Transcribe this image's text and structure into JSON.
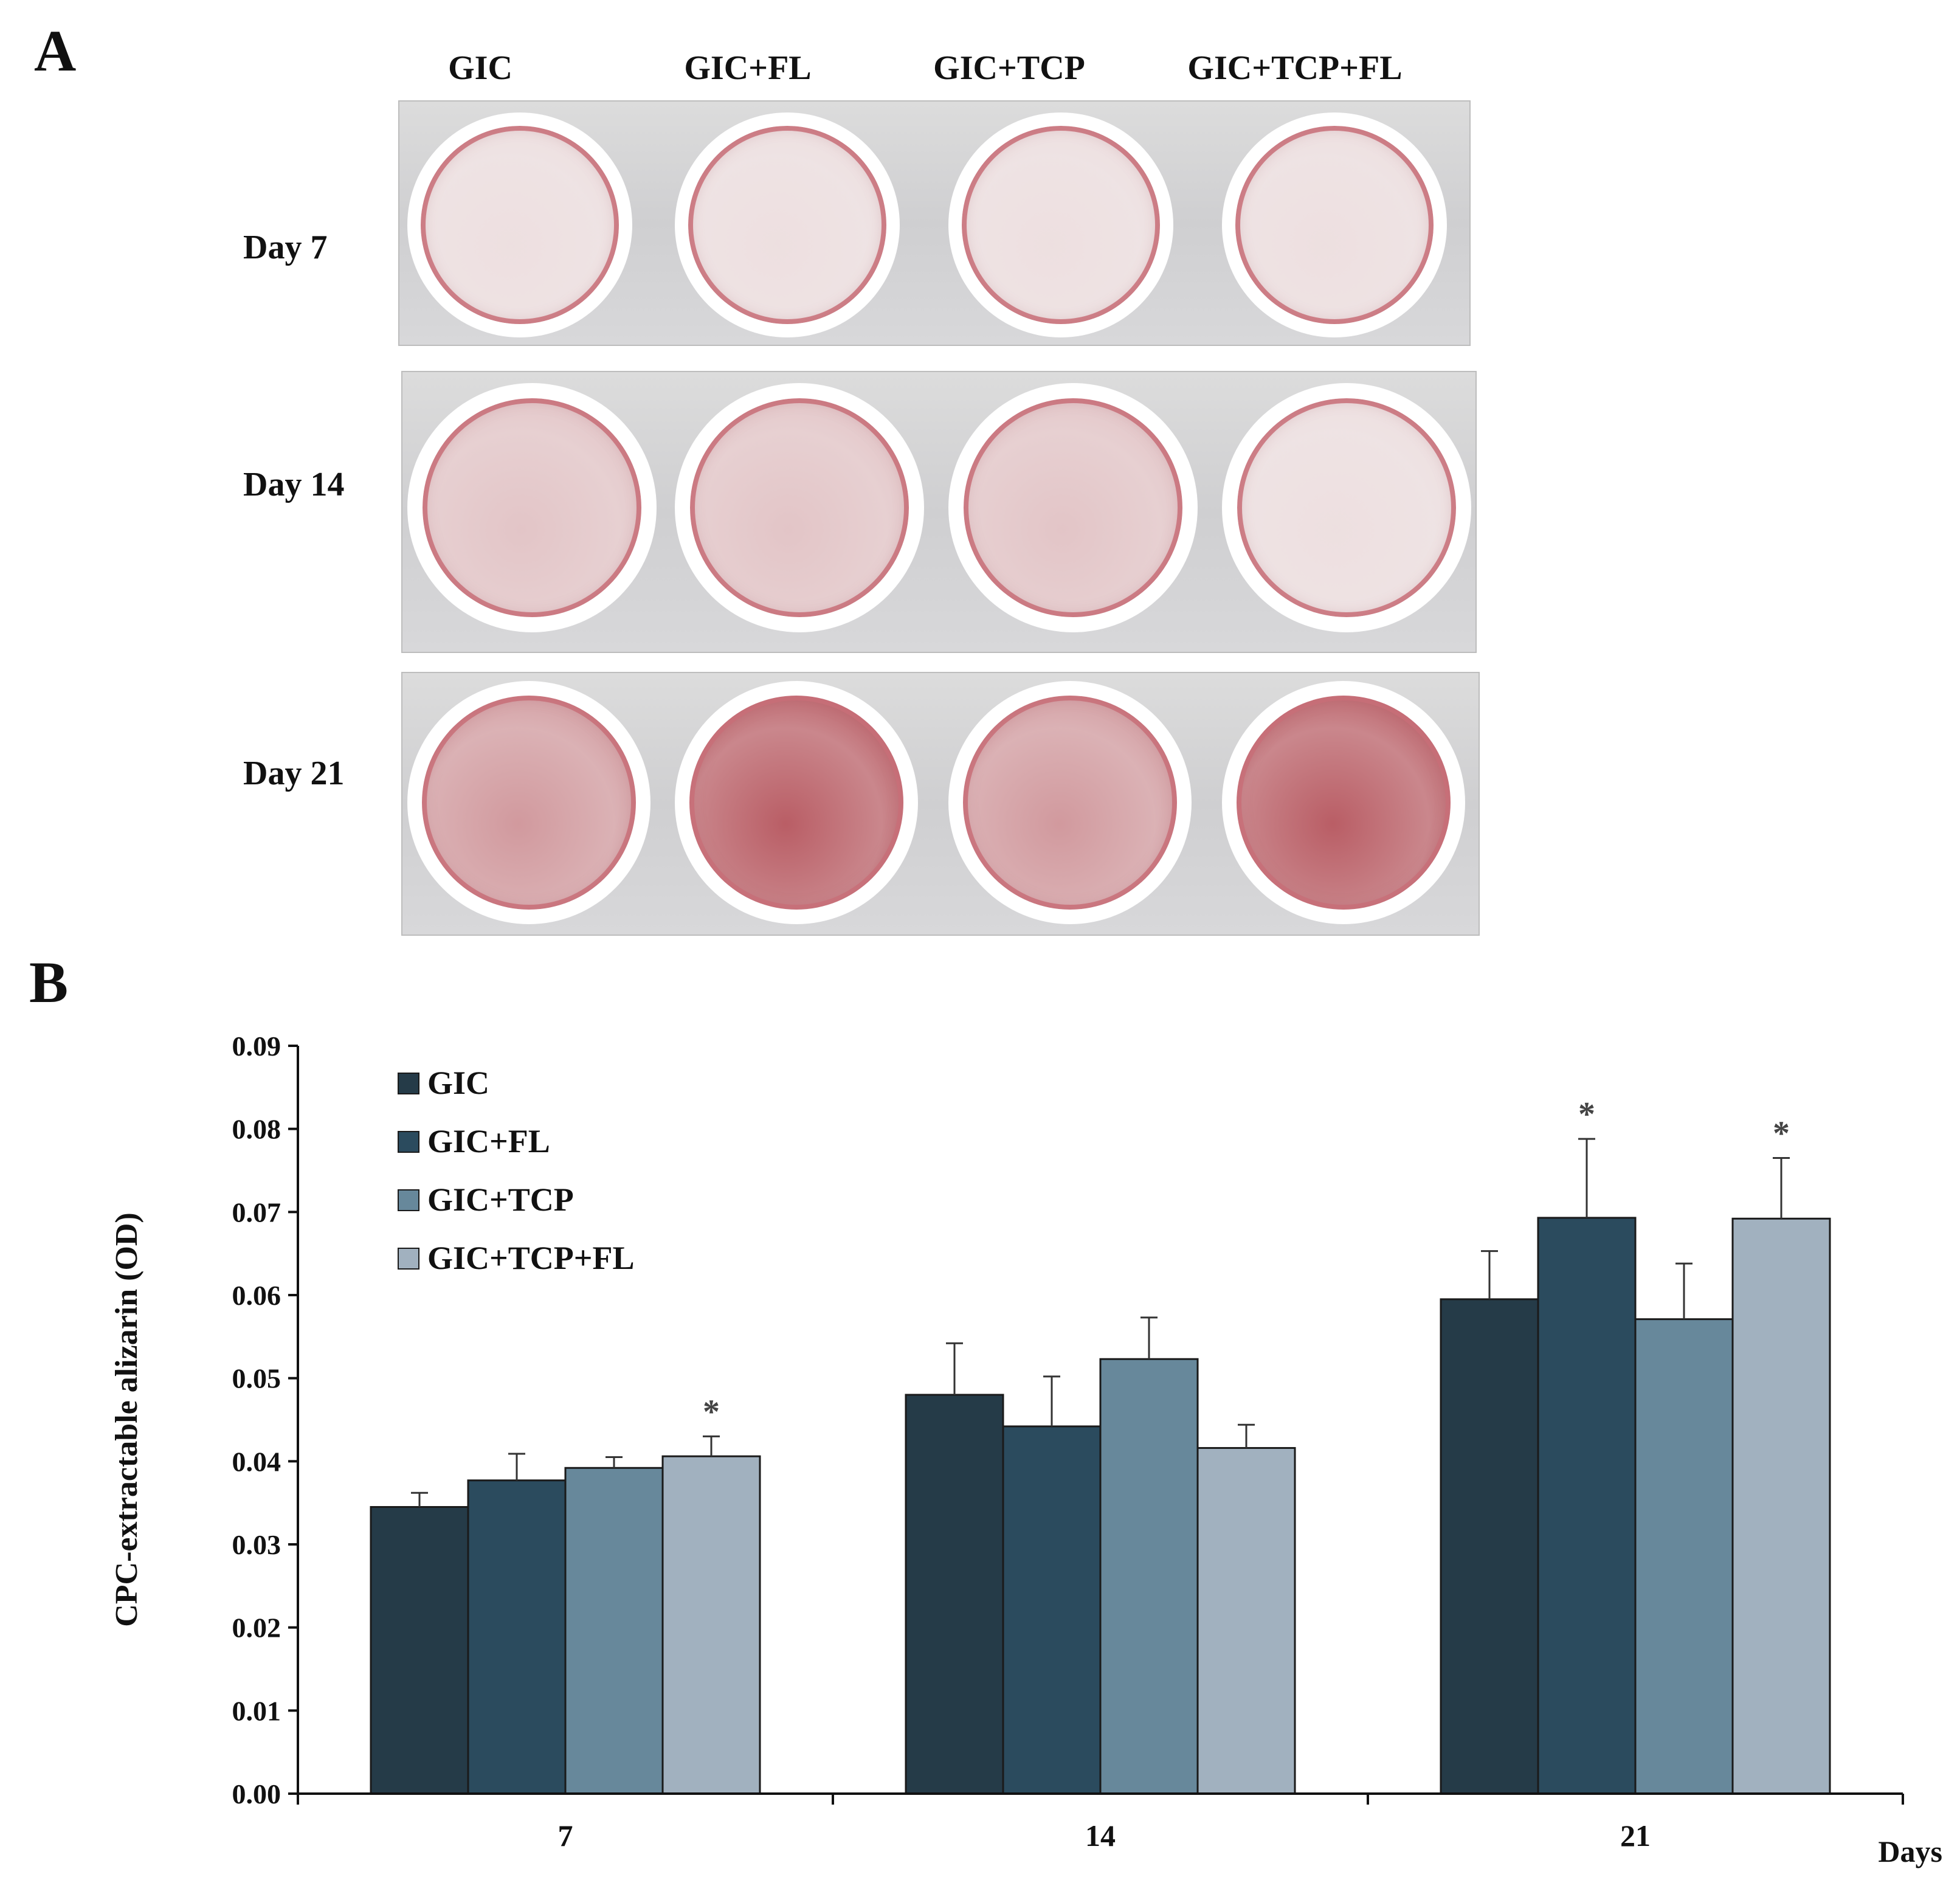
{
  "panel_a": {
    "label": "A",
    "columns": [
      "GIC",
      "GIC+FL",
      "GIC+TCP",
      "GIC+TCP+FL"
    ],
    "rows": [
      {
        "label": "Day 7",
        "stain": [
          "faint",
          "faint",
          "faint",
          "faint"
        ]
      },
      {
        "label": "Day 14",
        "stain": [
          "light",
          "light",
          "light",
          "faint"
        ]
      },
      {
        "label": "Day 21",
        "stain": [
          "moderate",
          "heavy",
          "moderate",
          "heavy"
        ]
      }
    ],
    "colors": {
      "stain": "#a8323c",
      "plate": "#d2d2d4"
    }
  },
  "panel_b": {
    "label": "B"
  },
  "chart_data": {
    "type": "bar",
    "title": "",
    "xlabel": "Days",
    "ylabel": "CPC-extractable alizarin (OD)",
    "ylim": [
      0,
      0.09
    ],
    "yticks": [
      "0.00",
      "0.01",
      "0.02",
      "0.03",
      "0.04",
      "0.05",
      "0.06",
      "0.07",
      "0.08",
      "0.09"
    ],
    "categories": [
      "7",
      "14",
      "21"
    ],
    "series": [
      {
        "name": "GIC",
        "color": "#253b48",
        "values": [
          0.0345,
          0.048,
          0.0595
        ],
        "errors": [
          0.0017,
          0.0062,
          0.0058
        ],
        "significant": [
          false,
          false,
          false
        ]
      },
      {
        "name": "GIC+FL",
        "color": "#2b4b5e",
        "values": [
          0.0377,
          0.0442,
          0.0693
        ],
        "errors": [
          0.0032,
          0.006,
          0.0095
        ],
        "significant": [
          false,
          false,
          true
        ]
      },
      {
        "name": "GIC+TCP",
        "color": "#67889b",
        "values": [
          0.0392,
          0.0523,
          0.0571
        ],
        "errors": [
          0.0013,
          0.005,
          0.0067
        ],
        "significant": [
          false,
          false,
          false
        ]
      },
      {
        "name": "GIC+TCP+FL",
        "color": "#a1b1bf",
        "values": [
          0.0406,
          0.0416,
          0.0692
        ],
        "errors": [
          0.0024,
          0.0028,
          0.0073
        ],
        "significant": [
          true,
          false,
          true
        ]
      }
    ],
    "significance_marker": "*",
    "legend": "top-left"
  }
}
